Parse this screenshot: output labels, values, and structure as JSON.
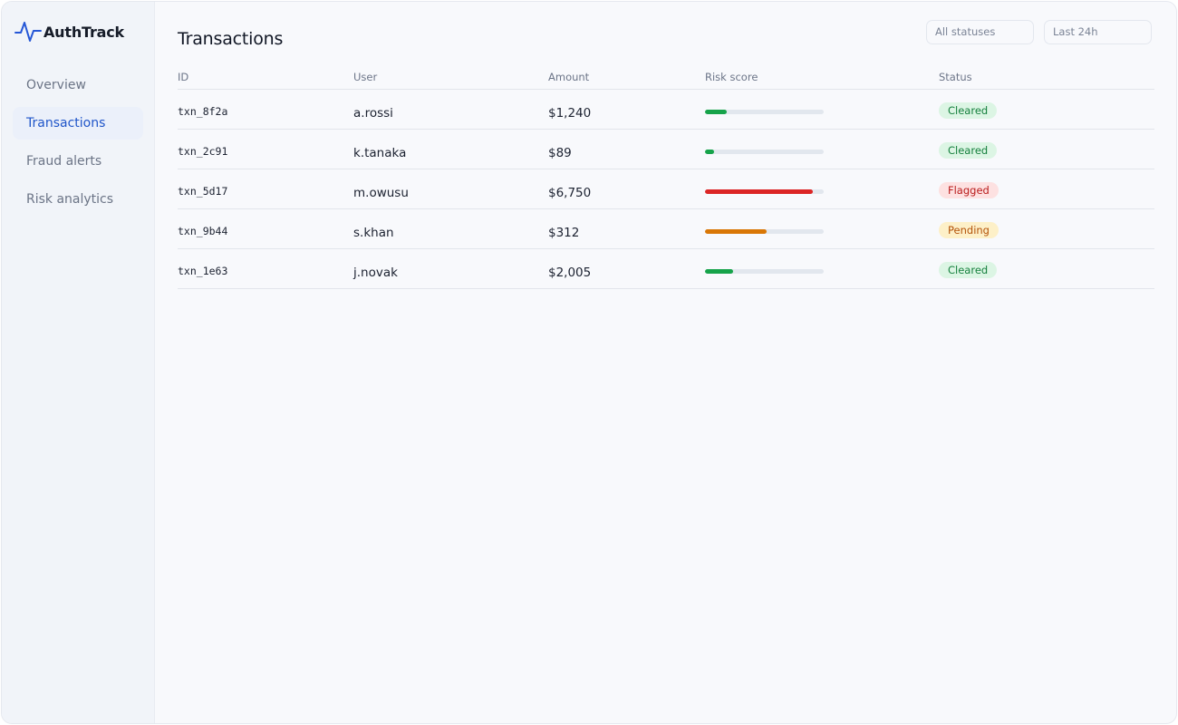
{
  "brand": {
    "name": "AuthTrack",
    "icon": "pulse-icon",
    "color": "#2456d6"
  },
  "sidebar": {
    "items": [
      {
        "label": "Overview",
        "active": false
      },
      {
        "label": "Transactions",
        "active": true
      },
      {
        "label": "Fraud alerts",
        "active": false
      },
      {
        "label": "Risk analytics",
        "active": false
      }
    ]
  },
  "main": {
    "title": "Transactions",
    "filters": {
      "status": "All statuses",
      "time": "Last 24h"
    }
  },
  "table": {
    "columns": [
      "ID",
      "User",
      "Amount",
      "Risk score",
      "Status"
    ],
    "rows": [
      {
        "id": "txn_8f2a",
        "user": "a.rossi",
        "amount": "$1,240",
        "risk": 0.18,
        "status": "Cleared"
      },
      {
        "id": "txn_2c91",
        "user": "k.tanaka",
        "amount": "$89",
        "risk": 0.08,
        "status": "Cleared"
      },
      {
        "id": "txn_5d17",
        "user": "m.owusu",
        "amount": "$6,750",
        "risk": 0.91,
        "status": "Flagged"
      },
      {
        "id": "txn_9b44",
        "user": "s.khan",
        "amount": "$312",
        "risk": 0.52,
        "status": "Pending"
      },
      {
        "id": "txn_1e63",
        "user": "j.novak",
        "amount": "$2,005",
        "risk": 0.24,
        "status": "Cleared"
      }
    ]
  },
  "colors": {
    "accent": "#1f55c9",
    "Cleared": {
      "bar": "#16a34a",
      "badge_bg": "#dcf5e4",
      "badge_text": "#15803d"
    },
    "Flagged": {
      "bar": "#dc2626",
      "badge_bg": "#fde1e1",
      "badge_text": "#b91c1c"
    },
    "Pending": {
      "bar": "#d97706",
      "badge_bg": "#fdf0c8",
      "badge_text": "#b45309"
    }
  }
}
